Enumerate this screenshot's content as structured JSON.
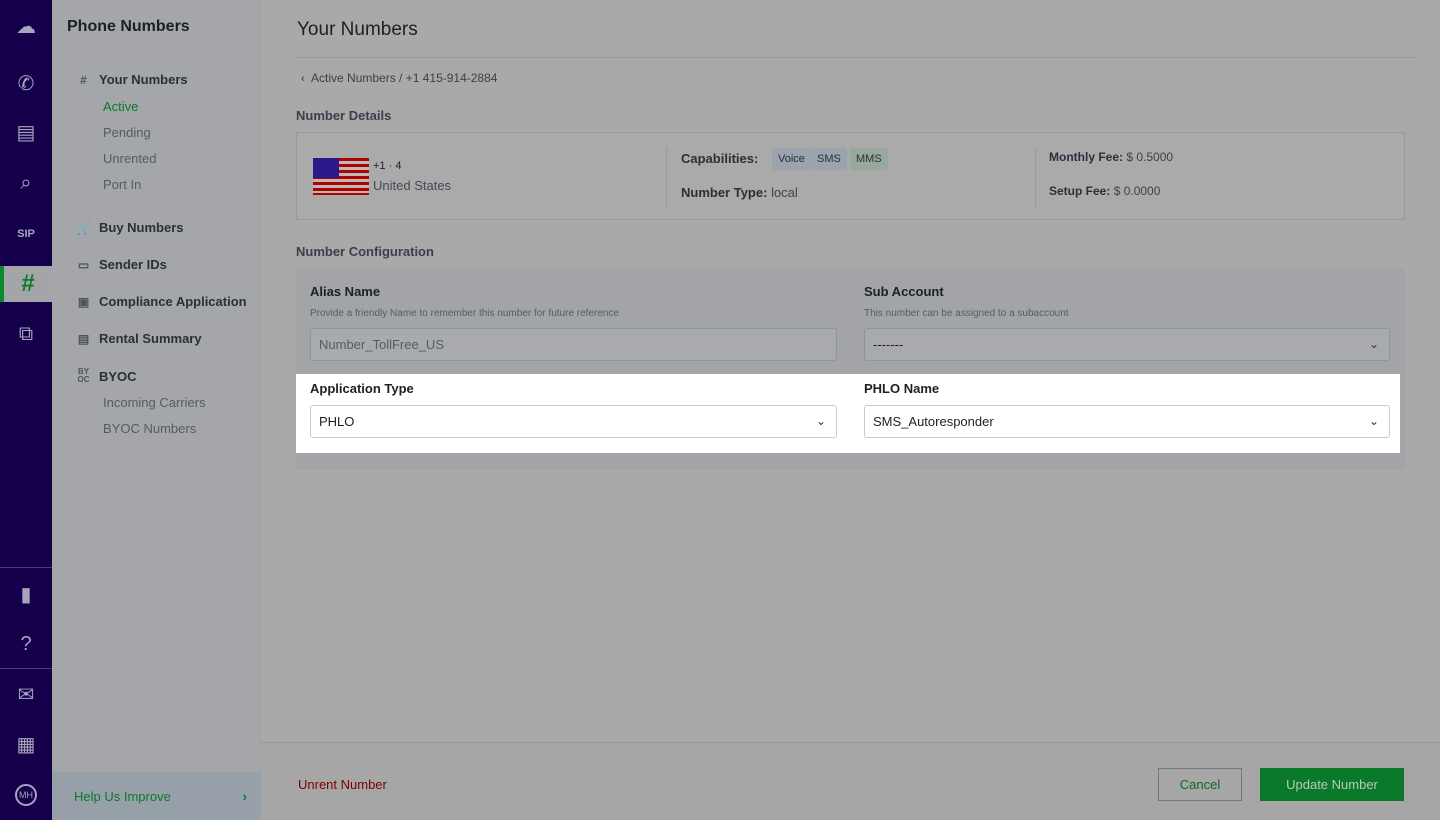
{
  "rail": {
    "icons": [
      "cloud-logo-icon",
      "voice-icon",
      "messaging-icon",
      "lookup-icon",
      "sip-trunk-icon",
      "phone-numbers-icon",
      "phlo-icon",
      "docs-icon",
      "help-icon",
      "billing-icon",
      "apps-icon"
    ],
    "avatar": "MH"
  },
  "sidebar": {
    "title": "Phone Numbers",
    "your_numbers": "Your Numbers",
    "subs": [
      "Active",
      "Pending",
      "Unrented",
      "Port In"
    ],
    "items": [
      "Buy Numbers",
      "Sender IDs",
      "Compliance Application",
      "Rental Summary"
    ],
    "byoc": "BYOC",
    "byoc_subs": [
      "Incoming Carriers",
      "BYOC Numbers"
    ],
    "help": "Help Us Improve"
  },
  "main": {
    "title": "Your Numbers",
    "breadcrumb": "Active Numbers / +1 415-914-2884",
    "details_heading": "Number Details",
    "number": "+1 ·                 4",
    "country": "United States",
    "capabilities_label": "Capabilities:",
    "capabilities": [
      "Voice",
      "SMS",
      "MMS"
    ],
    "number_type_label": "Number Type:",
    "number_type": "local",
    "monthly_fee_label": "Monthly Fee:",
    "monthly_fee": "$ 0.5000",
    "setup_fee_label": "Setup Fee:",
    "setup_fee": "$ 0.0000",
    "config_heading": "Number Configuration",
    "alias_label": "Alias Name",
    "alias_help": "Provide a friendly Name to remember this number for future reference",
    "alias_value": "Number_TollFree_US",
    "sub_label": "Sub Account",
    "sub_help": "This number can be assigned to a subaccount",
    "sub_value": "-------",
    "app_type_label": "Application Type",
    "app_type_value": "PHLO",
    "phlo_label": "PHLO Name",
    "phlo_value": "SMS_Autoresponder"
  },
  "footer": {
    "unrent": "Unrent Number",
    "cancel": "Cancel",
    "update": "Update Number"
  },
  "colors": {
    "accent": "#0a8a2a",
    "rail": "#14004b",
    "danger": "#7a0000"
  }
}
